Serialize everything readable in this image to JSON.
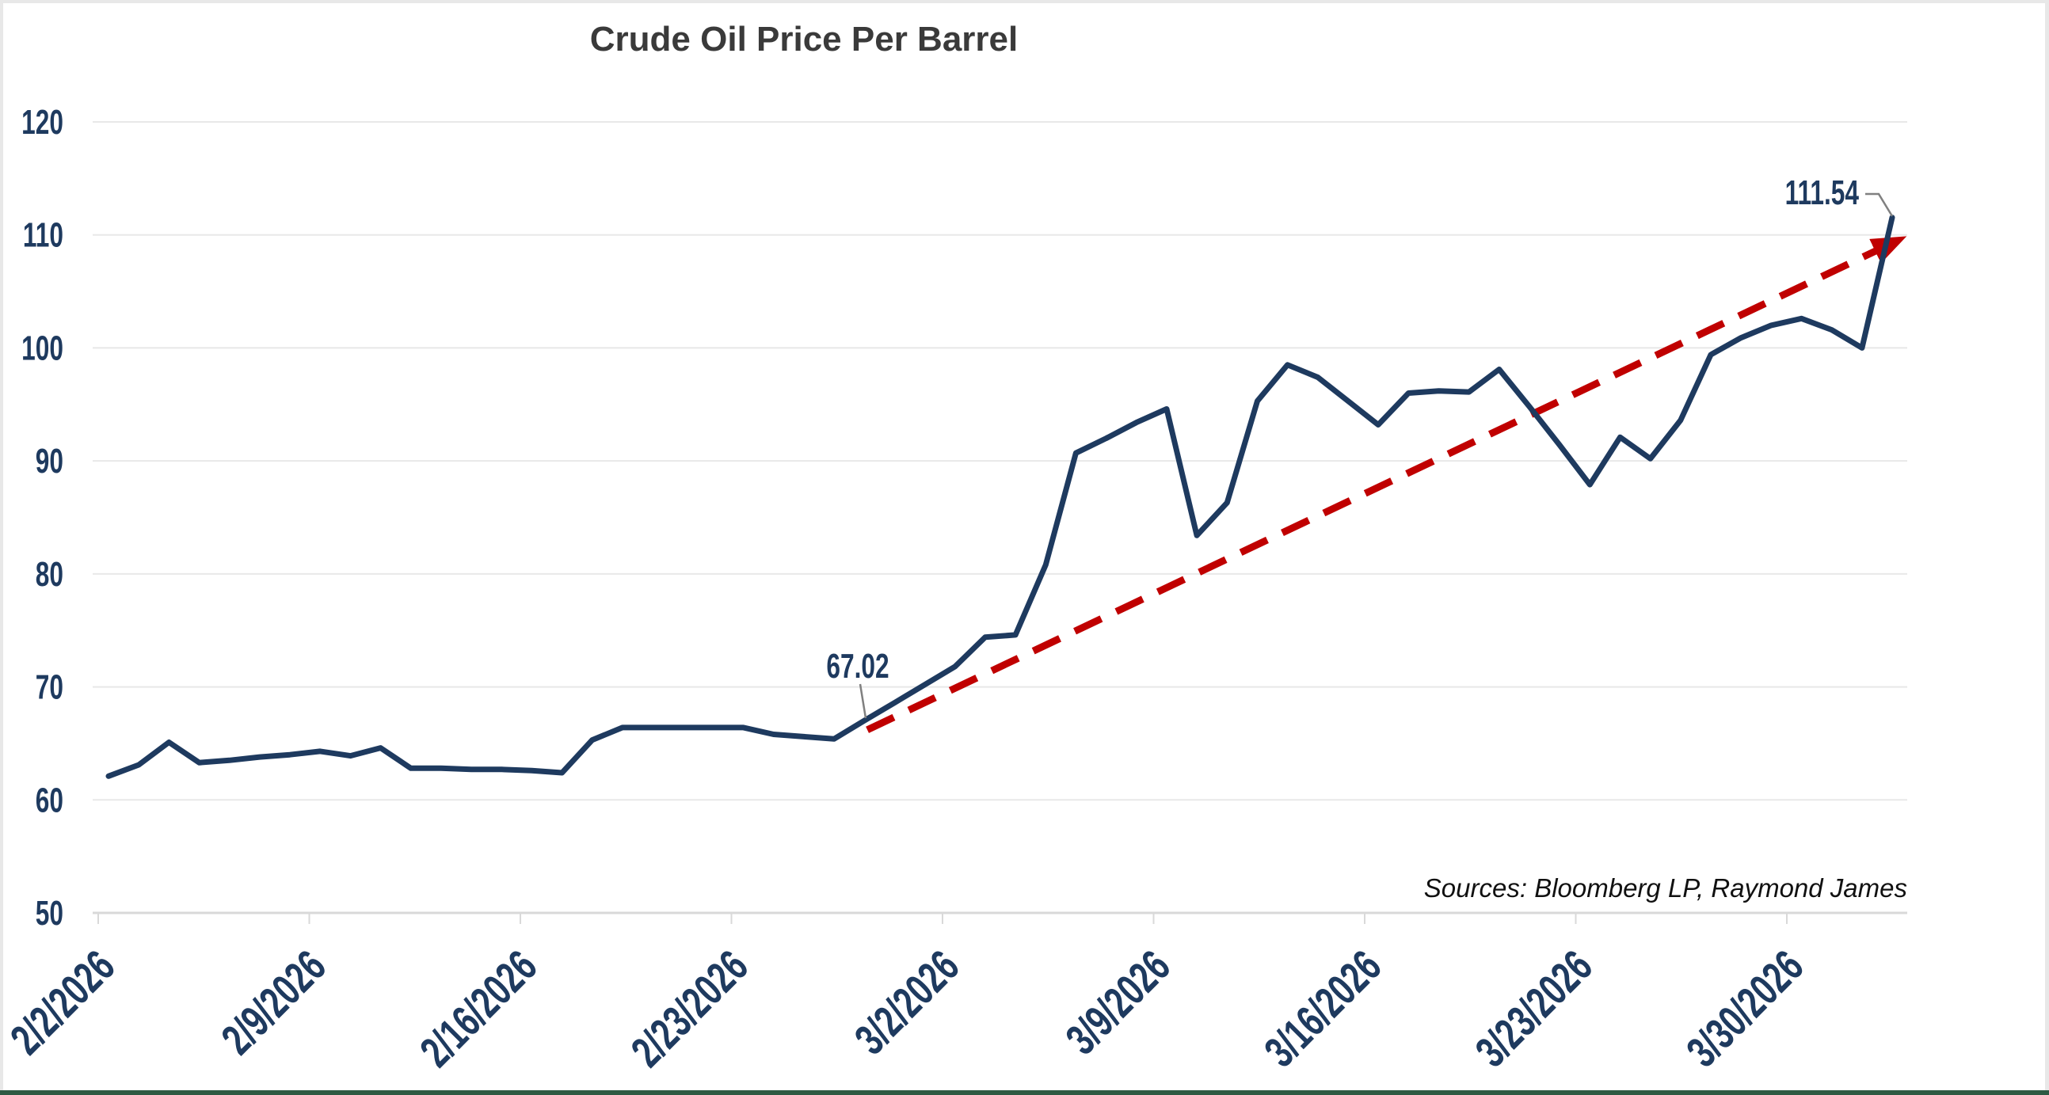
{
  "page": {
    "background_color": "#ffffff",
    "edge_border_light_color": "#e8e8e8",
    "edge_border_bottom_color": "#2e5a43"
  },
  "chart_data": {
    "type": "line",
    "title": "Crude Oil Price Per Barrel",
    "title_color": "#3a3a3a",
    "xlabel": "",
    "ylabel": "",
    "ylim": [
      50,
      120
    ],
    "y_ticks": [
      50,
      60,
      70,
      80,
      90,
      100,
      110,
      120
    ],
    "x_tick_labels": [
      "2/2/2026",
      "2/9/2026",
      "2/16/2026",
      "2/23/2026",
      "3/2/2026",
      "3/9/2026",
      "3/16/2026",
      "3/23/2026",
      "3/30/2026"
    ],
    "grid": "horizontal-only",
    "legend": "none",
    "series_name": "Crude Oil Price Per Barrel",
    "series_color": "#1e3a5f",
    "axis_label_color": "#1e3a5f",
    "gridline_color": "#e8e8e8",
    "axis_line_color": "#d9d9d9",
    "dates": [
      "2/2/2026",
      "2/3/2026",
      "2/4/2026",
      "2/5/2026",
      "2/6/2026",
      "2/7/2026",
      "2/8/2026",
      "2/9/2026",
      "2/10/2026",
      "2/11/2026",
      "2/12/2026",
      "2/13/2026",
      "2/14/2026",
      "2/15/2026",
      "2/16/2026",
      "2/17/2026",
      "2/18/2026",
      "2/19/2026",
      "2/20/2026",
      "2/21/2026",
      "2/22/2026",
      "2/23/2026",
      "2/24/2026",
      "2/25/2026",
      "2/26/2026",
      "2/27/2026",
      "2/28/2026",
      "3/1/2026",
      "3/2/2026",
      "3/3/2026",
      "3/4/2026",
      "3/5/2026",
      "3/6/2026",
      "3/7/2026",
      "3/8/2026",
      "3/9/2026",
      "3/10/2026",
      "3/11/2026",
      "3/12/2026",
      "3/13/2026",
      "3/14/2026",
      "3/15/2026",
      "3/16/2026",
      "3/17/2026",
      "3/18/2026",
      "3/19/2026",
      "3/20/2026",
      "3/21/2026",
      "3/22/2026",
      "3/23/2026",
      "3/24/2026",
      "3/25/2026",
      "3/26/2026",
      "3/27/2026",
      "3/28/2026",
      "3/29/2026",
      "3/30/2026",
      "3/31/2026",
      "4/1/2026",
      "4/2/2026"
    ],
    "values": [
      62.1,
      63.1,
      65.1,
      63.3,
      63.5,
      63.8,
      64.0,
      64.3,
      63.9,
      64.6,
      62.8,
      62.8,
      62.7,
      62.7,
      62.6,
      62.4,
      65.3,
      66.4,
      66.4,
      66.4,
      66.4,
      66.4,
      65.8,
      65.6,
      65.4,
      67.02,
      68.6,
      70.2,
      71.8,
      74.4,
      74.6,
      80.8,
      90.7,
      92.0,
      93.4,
      94.6,
      83.4,
      86.3,
      95.3,
      98.5,
      97.4,
      95.3,
      93.2,
      96.0,
      96.2,
      96.1,
      98.1,
      94.8,
      91.4,
      87.9,
      92.1,
      90.2,
      93.6,
      99.4,
      100.9,
      102.0,
      102.6,
      101.6,
      100.0,
      111.54
    ],
    "annotations": [
      {
        "label": "67.02",
        "date": "2/27/2026",
        "value": 67.02,
        "leader_color": "#808080"
      },
      {
        "label": "111.54",
        "date": "4/2/2026",
        "value": 111.54,
        "leader_color": "#808080"
      }
    ],
    "trendline": {
      "style": "dashed-arrow",
      "color": "#c00000",
      "start_day_index": 25.1,
      "start_value": 66.2,
      "end_day_index": 59.1,
      "end_value": 109.4
    },
    "source_note": "Sources: Bloomberg LP, Raymond James"
  }
}
